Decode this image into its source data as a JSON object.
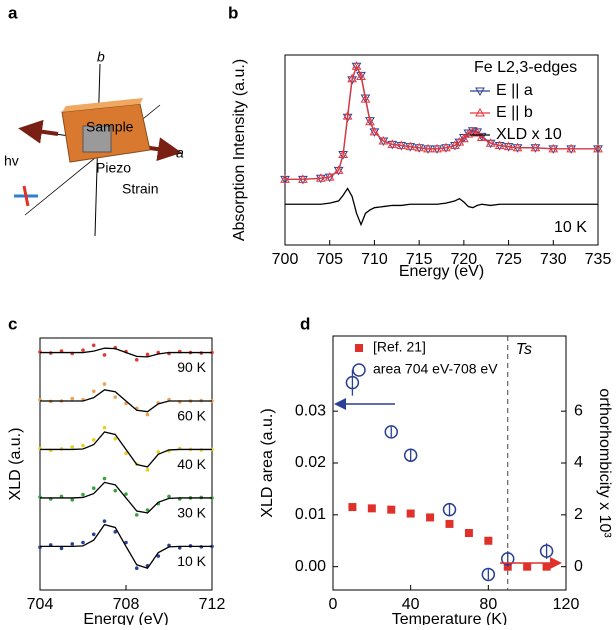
{
  "diagram": {
    "panel_label": "a",
    "labels": {
      "axis_b": "b",
      "axis_a": "a",
      "sample": "Sample",
      "piezo": "Piezo",
      "light": "hv",
      "strain": "Strain"
    }
  },
  "chart_data": [
    {
      "type": "line",
      "panel_label": "b",
      "xlabel": "Energy (eV)",
      "ylabel": "Absorption Intensity (a.u.)",
      "legend_title": "Fe L2,3-edges",
      "annotation": "10 K",
      "legend": "upper right",
      "x": [
        700,
        702,
        704,
        705,
        706,
        706.5,
        707,
        707.5,
        708,
        708.5,
        709,
        709.5,
        710,
        711,
        712,
        713,
        714,
        715,
        716,
        717,
        718,
        719,
        719.5,
        720,
        720.5,
        721,
        721.5,
        722,
        723,
        724,
        725,
        726,
        728,
        730,
        732,
        735
      ],
      "xlim": [
        700,
        735
      ],
      "xticks": [
        700,
        705,
        710,
        715,
        720,
        725,
        730,
        735
      ],
      "ylim": [
        -0.58,
        1.1
      ],
      "series": [
        {
          "name": "E || a",
          "color": "#2b3f94",
          "marker": "triangle-down",
          "values": [
            0,
            0,
            0.01,
            0.02,
            0.08,
            0.22,
            0.55,
            0.88,
            1.0,
            0.92,
            0.72,
            0.52,
            0.42,
            0.34,
            0.31,
            0.3,
            0.29,
            0.28,
            0.27,
            0.27,
            0.28,
            0.3,
            0.33,
            0.37,
            0.41,
            0.43,
            0.42,
            0.38,
            0.32,
            0.3,
            0.29,
            0.28,
            0.28,
            0.27,
            0.27,
            0.27
          ]
        },
        {
          "name": "E || b",
          "color": "#e8363a",
          "marker": "triangle-up",
          "values": [
            0,
            0,
            0.01,
            0.02,
            0.08,
            0.22,
            0.56,
            0.89,
            1.0,
            0.91,
            0.71,
            0.51,
            0.42,
            0.34,
            0.31,
            0.3,
            0.29,
            0.28,
            0.27,
            0.27,
            0.28,
            0.3,
            0.33,
            0.36,
            0.4,
            0.42,
            0.41,
            0.37,
            0.32,
            0.3,
            0.29,
            0.28,
            0.28,
            0.27,
            0.27,
            0.27
          ]
        },
        {
          "name": "XLD x 10",
          "color": "#000000",
          "values": [
            -0.22,
            -0.22,
            -0.22,
            -0.21,
            -0.19,
            -0.14,
            -0.08,
            -0.15,
            -0.3,
            -0.4,
            -0.3,
            -0.27,
            -0.25,
            -0.24,
            -0.23,
            -0.23,
            -0.22,
            -0.22,
            -0.22,
            -0.22,
            -0.21,
            -0.19,
            -0.17,
            -0.2,
            -0.24,
            -0.25,
            -0.23,
            -0.22,
            -0.23,
            -0.22,
            -0.22,
            -0.22,
            -0.22,
            -0.22,
            -0.22,
            -0.22
          ]
        }
      ]
    },
    {
      "type": "line",
      "panel_label": "c",
      "xlabel": "Energy (eV)",
      "ylabel": "XLD (a.u.)",
      "legend": "inline",
      "x": [
        704,
        704.5,
        705,
        705.5,
        706,
        706.5,
        707,
        707.5,
        708,
        708.5,
        709,
        709.5,
        710,
        710.5,
        711,
        711.5,
        712
      ],
      "xlim": [
        704,
        712
      ],
      "xticks": [
        704,
        708,
        712
      ],
      "ylim": [
        0,
        5.2
      ],
      "series": [
        {
          "name": "90 K",
          "color": "#e03a2f",
          "marker": "dot",
          "values": [
            4.91,
            4.89,
            4.93,
            4.88,
            4.95,
            5.05,
            4.85,
            5.0,
            4.92,
            4.75,
            4.86,
            4.9,
            4.88,
            4.92,
            4.9,
            4.89,
            4.9
          ],
          "fit": [
            4.9,
            4.9,
            4.9,
            4.9,
            4.9,
            4.93,
            4.99,
            4.98,
            4.9,
            4.82,
            4.81,
            4.87,
            4.9,
            4.9,
            4.9,
            4.9,
            4.9
          ]
        },
        {
          "name": "60 K",
          "color": "#f0a050",
          "marker": "dot",
          "values": [
            3.92,
            3.89,
            3.9,
            3.95,
            3.93,
            4.1,
            4.25,
            3.98,
            3.85,
            3.75,
            3.62,
            3.86,
            3.93,
            3.88,
            3.9,
            3.91,
            3.9
          ],
          "fit": [
            3.9,
            3.9,
            3.9,
            3.9,
            3.9,
            3.97,
            4.13,
            4.09,
            3.9,
            3.71,
            3.68,
            3.84,
            3.9,
            3.9,
            3.9,
            3.9,
            3.9
          ]
        },
        {
          "name": "40 K",
          "color": "#e6d020",
          "marker": "dot",
          "values": [
            2.92,
            2.88,
            2.91,
            2.95,
            2.98,
            3.1,
            3.35,
            3.12,
            2.82,
            2.6,
            2.48,
            2.85,
            2.87,
            2.92,
            2.9,
            2.89,
            2.9
          ],
          "fit": [
            2.9,
            2.9,
            2.9,
            2.9,
            2.91,
            3.0,
            3.26,
            3.21,
            2.9,
            2.59,
            2.54,
            2.8,
            2.89,
            2.9,
            2.9,
            2.9,
            2.9
          ]
        },
        {
          "name": "30 K",
          "color": "#3aa040",
          "marker": "dot",
          "values": [
            1.92,
            1.88,
            1.93,
            1.86,
            1.97,
            2.1,
            2.3,
            2.05,
            1.98,
            1.55,
            1.65,
            1.78,
            1.93,
            1.88,
            1.9,
            1.91,
            1.9
          ],
          "fit": [
            1.9,
            1.9,
            1.9,
            1.9,
            1.91,
            1.99,
            2.22,
            2.17,
            1.9,
            1.63,
            1.59,
            1.81,
            1.89,
            1.9,
            1.9,
            1.9,
            1.9
          ]
        },
        {
          "name": "10 K",
          "color": "#2b3f94",
          "marker": "dot",
          "values": [
            0.88,
            0.93,
            0.86,
            0.95,
            0.98,
            1.15,
            1.42,
            1.2,
            0.98,
            0.45,
            0.5,
            0.7,
            0.92,
            0.87,
            0.91,
            0.89,
            0.9
          ],
          "fit": [
            0.9,
            0.9,
            0.9,
            0.9,
            0.91,
            1.03,
            1.35,
            1.29,
            0.9,
            0.52,
            0.45,
            0.77,
            0.89,
            0.9,
            0.9,
            0.9,
            0.9
          ]
        }
      ]
    },
    {
      "type": "scatter",
      "panel_label": "d",
      "xlabel": "Temperature (K)",
      "ylabel": "XLD area (a.u.)",
      "y2label": "orthorhombicity x 10³",
      "legend": "upper left",
      "xlim": [
        0,
        120
      ],
      "xticks": [
        0,
        40,
        80,
        120
      ],
      "ylim": [
        -0.0045,
        0.0445
      ],
      "yticks": [
        {
          "value": 0,
          "label": "0.00"
        },
        {
          "value": 0.01,
          "label": "0.01"
        },
        {
          "value": 0.02,
          "label": "0.02"
        },
        {
          "value": 0.03,
          "label": "0.03"
        }
      ],
      "y2lim": [
        -0.9,
        8.9
      ],
      "y2ticks": [
        0,
        2,
        4,
        6
      ],
      "vline": {
        "x": 90,
        "label": "Ts"
      },
      "series": [
        {
          "name": "[Ref. 21]",
          "color": "#e0302a",
          "marker": "square",
          "axis": "y2",
          "x": [
            10,
            20,
            30,
            40,
            50,
            60,
            70,
            80,
            90,
            100,
            110
          ],
          "values": [
            2.3,
            2.25,
            2.2,
            2.05,
            1.9,
            1.65,
            1.3,
            1.0,
            0,
            0,
            0
          ]
        },
        {
          "name": "area 704 eV-708 eV",
          "color": "#2b3f94",
          "marker": "open-circle",
          "x": [
            10,
            30,
            40,
            60,
            80,
            90,
            110
          ],
          "values": [
            0.0355,
            0.026,
            0.0215,
            0.011,
            -0.0015,
            0.0015,
            0.003
          ],
          "errors": [
            0.0025,
            0.001,
            0.0012,
            0.0013,
            0.001,
            0.0015,
            0.0015
          ]
        }
      ]
    }
  ]
}
